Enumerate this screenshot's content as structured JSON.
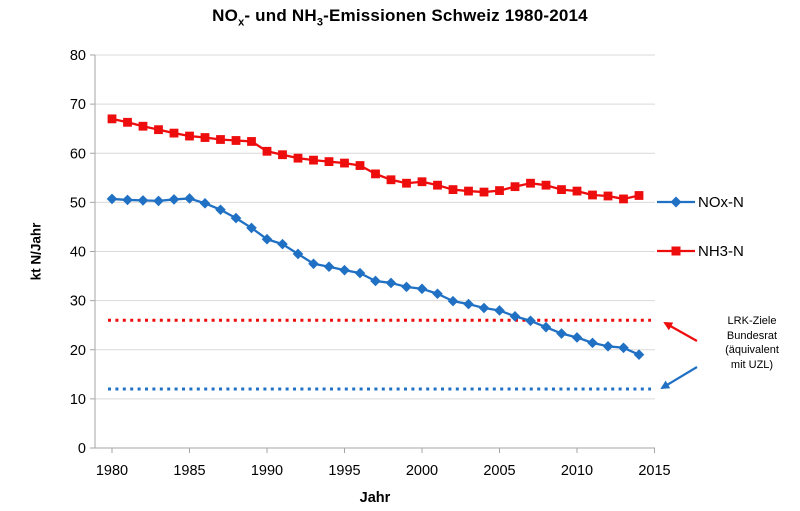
{
  "title": {
    "plain": "NOx- und NH3-Emissionen Schweiz 1980-2014",
    "parts": [
      {
        "text": "NO"
      },
      {
        "text": "x",
        "sub": true
      },
      {
        "text": "- und NH"
      },
      {
        "text": "3",
        "sub": true
      },
      {
        "text": "-Emissionen Schweiz 1980-2014"
      }
    ]
  },
  "chart_data": {
    "type": "line",
    "title": "NOx- und NH3-Emissionen Schweiz 1980-2014",
    "xlabel": "Jahr",
    "ylabel": "kt N/Jahr",
    "xlim": [
      1980,
      2015
    ],
    "ylim": [
      0,
      80
    ],
    "x_ticks": [
      1980,
      1985,
      1990,
      1995,
      2000,
      2005,
      2010,
      2015
    ],
    "y_ticks": [
      0,
      10,
      20,
      30,
      40,
      50,
      60,
      70,
      80
    ],
    "grid": "horizontal",
    "legend_position": "right",
    "x": [
      1980,
      1981,
      1982,
      1983,
      1984,
      1985,
      1986,
      1987,
      1988,
      1989,
      1990,
      1991,
      1992,
      1993,
      1994,
      1995,
      1996,
      1997,
      1998,
      1999,
      2000,
      2001,
      2002,
      2003,
      2004,
      2005,
      2006,
      2007,
      2008,
      2009,
      2010,
      2011,
      2012,
      2013,
      2014
    ],
    "series": [
      {
        "name": "NOx-N",
        "marker": "diamond",
        "color": "#2070C4",
        "values": [
          50.7,
          50.5,
          50.4,
          50.3,
          50.6,
          50.8,
          49.8,
          48.5,
          46.8,
          44.8,
          42.5,
          41.5,
          39.5,
          37.5,
          36.9,
          36.2,
          35.6,
          34.0,
          33.6,
          32.8,
          32.4,
          31.4,
          29.9,
          29.3,
          28.5,
          28.0,
          26.8,
          25.9,
          24.6,
          23.3,
          22.5,
          21.4,
          20.7,
          20.4,
          19.0
        ]
      },
      {
        "name": "NH3-N",
        "marker": "square",
        "color": "#EE0D0D",
        "values": [
          67.0,
          66.3,
          65.5,
          64.8,
          64.1,
          63.5,
          63.2,
          62.8,
          62.6,
          62.4,
          60.4,
          59.7,
          59.0,
          58.6,
          58.3,
          58.0,
          57.5,
          55.8,
          54.6,
          53.9,
          54.2,
          53.5,
          52.6,
          52.3,
          52.1,
          52.4,
          53.2,
          53.9,
          53.5,
          52.6,
          52.3,
          51.5,
          51.3,
          50.7,
          51.4
        ]
      }
    ],
    "reference_lines": [
      {
        "value": 26,
        "color": "#EE0D0D",
        "style": "dotted"
      },
      {
        "value": 12,
        "color": "#2070C4",
        "style": "dotted"
      }
    ],
    "annotation": {
      "lines": [
        "LRK-Ziele",
        "Bundesrat",
        "(äquivalent",
        "mit UZL)"
      ]
    }
  },
  "colors": {
    "nox": "#2070C4",
    "nh3": "#EE0D0D",
    "gridline": "#D9D9D9",
    "axis": "#A6A6A6",
    "text": "#000000"
  }
}
